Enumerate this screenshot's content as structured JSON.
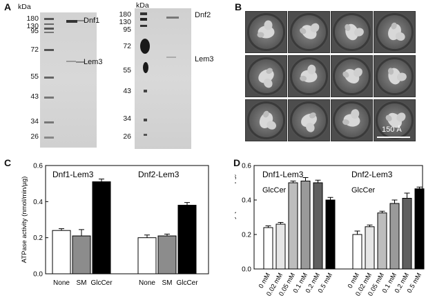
{
  "panels": {
    "A": {
      "letter": "A",
      "gel1": {
        "unit": "kDa",
        "markers": [
          "180",
          "130",
          "95",
          "72",
          "55",
          "43",
          "34",
          "26"
        ],
        "band_labels": [
          "Dnf1",
          "Lem3"
        ]
      },
      "gel2": {
        "unit": "kDa",
        "markers": [
          "180",
          "130",
          "95",
          "72",
          "55",
          "43",
          "34",
          "26"
        ],
        "band_labels": [
          "Dnf2",
          "Lem3"
        ]
      }
    },
    "B": {
      "letter": "B",
      "scale_bar": "150 Å",
      "class_averages": 12
    },
    "C": {
      "letter": "C"
    },
    "D": {
      "letter": "D"
    }
  },
  "chart_data": [
    {
      "type": "bar",
      "panel": "C",
      "ylabel": "ATPase activity (nmol/min/µg)",
      "ylim": [
        0,
        0.6
      ],
      "yticks": [
        "0.0",
        "0.2",
        "0.4",
        "0.6"
      ],
      "groups": [
        {
          "label": "Dnf1-Lem3",
          "categories": [
            "None",
            "SM",
            "GlcCer"
          ],
          "values": [
            0.24,
            0.21,
            0.51
          ],
          "errors": [
            0.01,
            0.035,
            0.015
          ],
          "colors": [
            "#ffffff",
            "#8c8c8c",
            "#000000"
          ]
        },
        {
          "label": "Dnf2-Lem3",
          "categories": [
            "None",
            "SM",
            "GlcCer"
          ],
          "values": [
            0.2,
            0.21,
            0.38
          ],
          "errors": [
            0.015,
            0.01,
            0.015
          ],
          "colors": [
            "#ffffff",
            "#8c8c8c",
            "#000000"
          ]
        }
      ]
    },
    {
      "type": "bar",
      "panel": "D",
      "ylabel": "ATPase activity (nmol/min/µg)",
      "ylim": [
        0,
        0.6
      ],
      "yticks": [
        "0.0",
        "0.2",
        "0.4",
        "0.6"
      ],
      "annotation": "GlcCer",
      "groups": [
        {
          "label": "Dnf1-Lem3",
          "categories": [
            "0 mM",
            "0.02 mM",
            "0.05 mM",
            "0.1 mM",
            "0.2 mM",
            "0.5 mM"
          ],
          "values": [
            0.24,
            0.26,
            0.5,
            0.51,
            0.5,
            0.4
          ],
          "errors": [
            0.01,
            0.01,
            0.01,
            0.02,
            0.015,
            0.015
          ],
          "colors": [
            "#ffffff",
            "#e6e6e6",
            "#bdbdbd",
            "#9a9a9a",
            "#5f5f5f",
            "#000000"
          ]
        },
        {
          "label": "Dnf2-Lem3",
          "categories": [
            "0 mM",
            "0.02 mM",
            "0.05 mM",
            "0.1 mM",
            "0.2 mM",
            "0.5 mM"
          ],
          "values": [
            0.2,
            0.245,
            0.325,
            0.38,
            0.41,
            0.465
          ],
          "errors": [
            0.02,
            0.01,
            0.01,
            0.02,
            0.03,
            0.01
          ],
          "colors": [
            "#ffffff",
            "#e6e6e6",
            "#bdbdbd",
            "#9a9a9a",
            "#5f5f5f",
            "#000000"
          ]
        }
      ]
    }
  ]
}
